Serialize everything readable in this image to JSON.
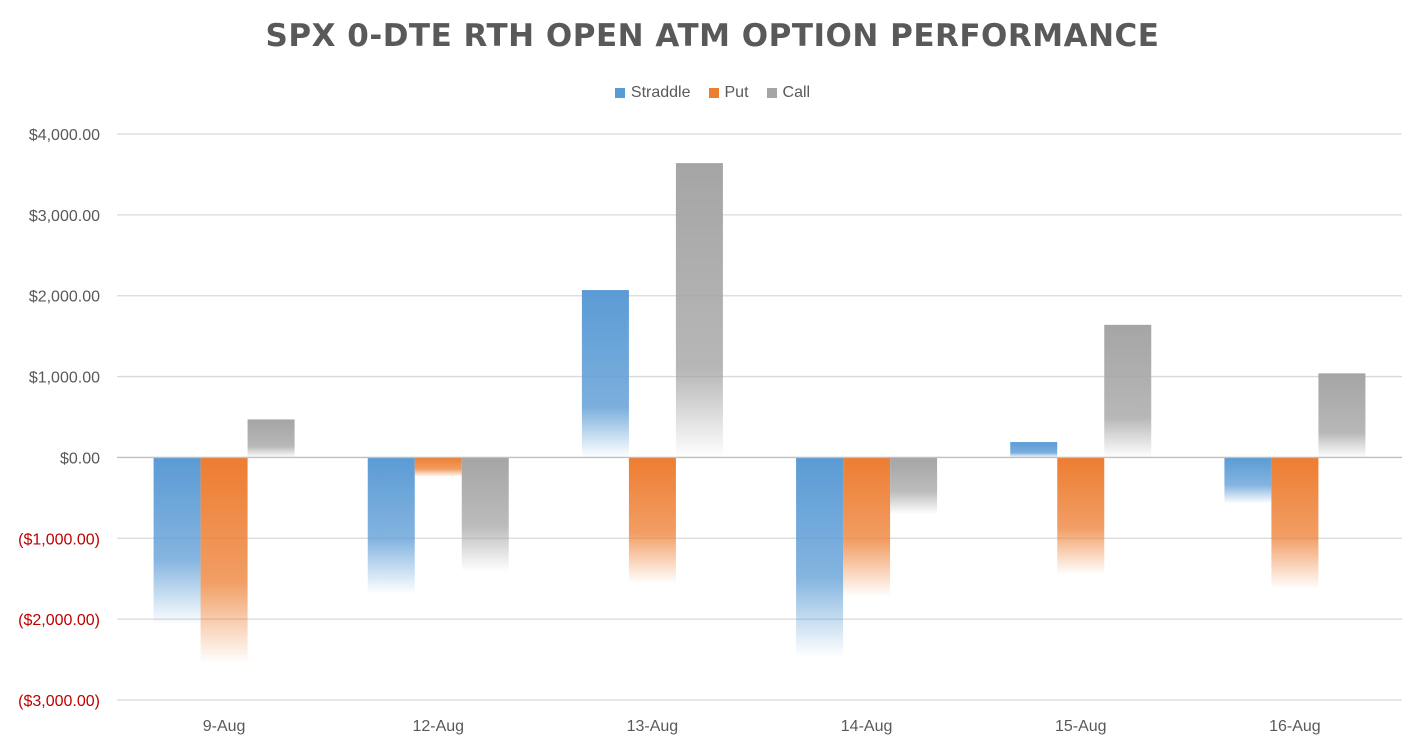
{
  "chart_data": {
    "type": "bar",
    "title": "SPX 0-DTE RTH OPEN ATM OPTION PERFORMANCE",
    "xlabel": "",
    "ylabel": "",
    "categories": [
      "9-Aug",
      "12-Aug",
      "13-Aug",
      "14-Aug",
      "15-Aug",
      "16-Aug"
    ],
    "series": [
      {
        "name": "Straddle",
        "color": "#5B9BD5",
        "values": [
          -2080,
          -1690,
          2070,
          -2470,
          190,
          -570
        ]
      },
      {
        "name": "Put",
        "color": "#ED7D31",
        "values": [
          -2550,
          -240,
          -1560,
          -1720,
          -1450,
          -1630
        ]
      },
      {
        "name": "Call",
        "color": "#A5A5A5",
        "values": [
          470,
          -1410,
          3640,
          -700,
          1640,
          1040
        ]
      }
    ],
    "ylim": [
      -3000,
      4000
    ],
    "yticks": [
      {
        "value": 4000,
        "label": "$4,000.00"
      },
      {
        "value": 3000,
        "label": "$3,000.00"
      },
      {
        "value": 2000,
        "label": "$2,000.00"
      },
      {
        "value": 1000,
        "label": "$1,000.00"
      },
      {
        "value": 0,
        "label": "$0.00"
      },
      {
        "value": -1000,
        "label": "($1,000.00)"
      },
      {
        "value": -2000,
        "label": "($2,000.00)"
      },
      {
        "value": -3000,
        "label": "($3,000.00)"
      }
    ],
    "negative_label_color": "#C00000",
    "positive_label_color": "#595959",
    "legend_position": "top-center",
    "grid": true
  }
}
